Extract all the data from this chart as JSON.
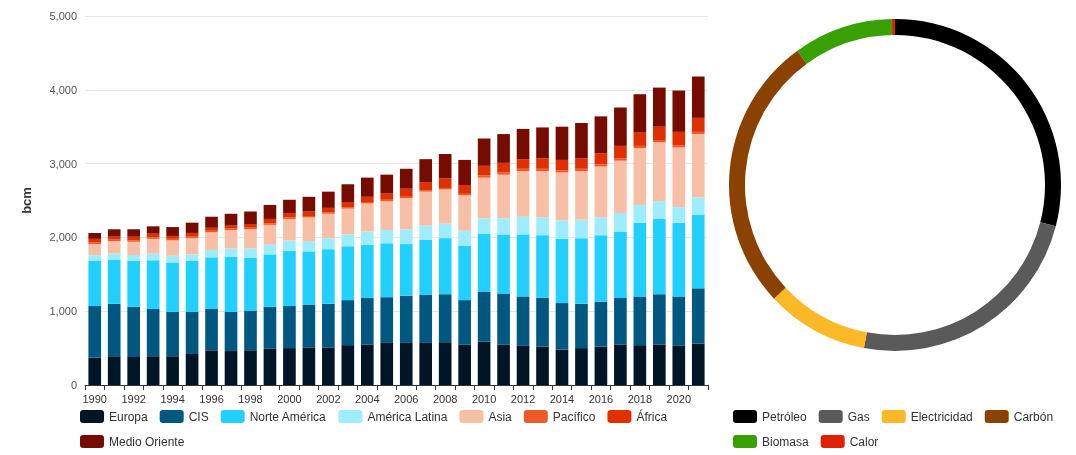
{
  "chart_data": [
    {
      "type": "bar",
      "stacked": true,
      "ylabel": "bcm",
      "grid": "y",
      "legend": "bottom",
      "categories": [
        "1990",
        null,
        "1992",
        null,
        "1994",
        null,
        "1996",
        null,
        "1998",
        null,
        "2000",
        null,
        "2002",
        null,
        "2004",
        null,
        "2006",
        null,
        "2008",
        null,
        "2010",
        null,
        "2012",
        null,
        "2014",
        null,
        "2016",
        null,
        "2018",
        null,
        "2020",
        null
      ],
      "ylim": [
        0,
        5000
      ],
      "yticks": [
        0,
        {
          "value": 1000,
          "label": "1,000"
        },
        {
          "value": 2000,
          "label": "2,000"
        },
        {
          "value": 3000,
          "label": "3,000"
        },
        {
          "value": 4000,
          "label": "4,000"
        },
        {
          "value": 5000,
          "label": "5,000"
        }
      ],
      "series": [
        {
          "name": "Europa",
          "color": "#001626",
          "values": [
            370,
            390,
            380,
            390,
            390,
            420,
            470,
            460,
            470,
            490,
            500,
            510,
            510,
            540,
            550,
            570,
            570,
            570,
            580,
            550,
            590,
            550,
            530,
            520,
            480,
            500,
            520,
            550,
            540,
            550,
            530,
            560
          ]
        },
        {
          "name": "CIS",
          "color": "#005780",
          "values": [
            700,
            710,
            680,
            640,
            600,
            570,
            560,
            530,
            540,
            570,
            570,
            580,
            590,
            610,
            630,
            620,
            640,
            650,
            650,
            600,
            670,
            690,
            670,
            660,
            630,
            600,
            610,
            630,
            660,
            680,
            670,
            750
          ]
        },
        {
          "name": "Norte América",
          "color": "#22d0ff",
          "values": [
            610,
            600,
            620,
            660,
            670,
            690,
            700,
            750,
            710,
            710,
            750,
            720,
            740,
            730,
            720,
            730,
            700,
            750,
            760,
            740,
            790,
            800,
            840,
            850,
            870,
            890,
            900,
            900,
            1000,
            1020,
            1000,
            1000
          ]
        },
        {
          "name": "América Latina",
          "color": "#9eecff",
          "values": [
            80,
            80,
            80,
            90,
            90,
            90,
            100,
            110,
            130,
            130,
            140,
            140,
            150,
            160,
            180,
            180,
            200,
            190,
            200,
            200,
            210,
            220,
            240,
            240,
            250,
            250,
            240,
            250,
            240,
            240,
            210,
            230
          ]
        },
        {
          "name": "Asia",
          "color": "#f7c0a6",
          "values": [
            150,
            170,
            180,
            200,
            210,
            220,
            240,
            250,
            260,
            270,
            290,
            320,
            330,
            350,
            380,
            390,
            420,
            460,
            460,
            480,
            550,
            590,
            620,
            630,
            650,
            660,
            690,
            710,
            770,
            800,
            810,
            860
          ]
        },
        {
          "name": "Pacífico",
          "color": "#ee5a2a",
          "values": [
            20,
            20,
            20,
            20,
            20,
            20,
            20,
            20,
            20,
            20,
            20,
            20,
            20,
            20,
            20,
            20,
            20,
            20,
            20,
            20,
            30,
            30,
            30,
            30,
            30,
            30,
            30,
            30,
            30,
            30,
            30,
            30
          ]
        },
        {
          "name": "África",
          "color": "#e03000",
          "values": [
            50,
            40,
            50,
            50,
            40,
            50,
            40,
            40,
            50,
            60,
            60,
            60,
            60,
            70,
            70,
            90,
            110,
            110,
            130,
            120,
            130,
            130,
            130,
            140,
            140,
            140,
            150,
            170,
            180,
            180,
            180,
            190
          ]
        },
        {
          "name": "Medio Oriente",
          "color": "#760c00",
          "values": [
            80,
            100,
            100,
            100,
            120,
            140,
            150,
            160,
            170,
            190,
            180,
            200,
            220,
            240,
            260,
            250,
            270,
            310,
            330,
            340,
            370,
            390,
            410,
            420,
            450,
            480,
            500,
            520,
            520,
            530,
            560,
            560
          ]
        }
      ]
    },
    {
      "type": "donut",
      "legend": "bottom",
      "categories": [
        "Petróleo",
        "Gas",
        "Electricidad",
        "Carbón",
        "Biomasa",
        "Calor"
      ],
      "values": [
        29,
        24,
        10,
        27,
        9.7,
        0.3
      ],
      "colors": [
        "#000000",
        "#5a5a5a",
        "#fbb827",
        "#8a4200",
        "#38a000",
        "#e02000"
      ]
    }
  ]
}
